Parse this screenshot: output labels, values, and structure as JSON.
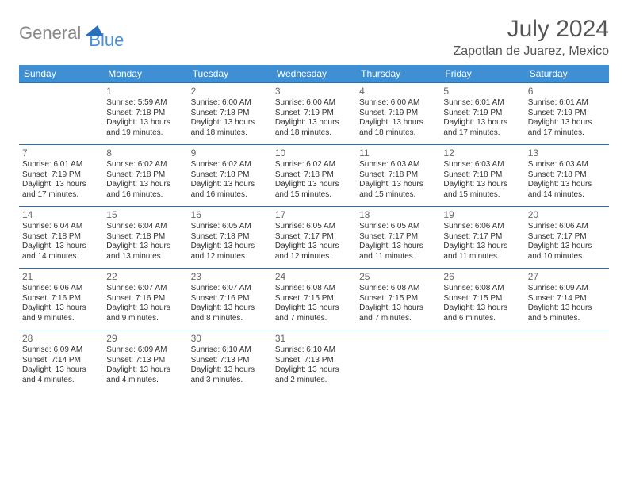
{
  "logo": {
    "part1": "General",
    "part2": "Blue"
  },
  "title": "July 2024",
  "location": "Zapotlan de Juarez, Mexico",
  "colors": {
    "header_bg": "#3f8fd4",
    "header_text": "#ffffff",
    "border": "#2b6fb8",
    "body_text": "#333333",
    "title_text": "#555555",
    "logo_gray": "#888888",
    "logo_blue": "#4a90d9"
  },
  "day_headers": [
    "Sunday",
    "Monday",
    "Tuesday",
    "Wednesday",
    "Thursday",
    "Friday",
    "Saturday"
  ],
  "weeks": [
    [
      null,
      {
        "n": "1",
        "sr": "5:59 AM",
        "ss": "7:18 PM",
        "dl": "13 hours and 19 minutes."
      },
      {
        "n": "2",
        "sr": "6:00 AM",
        "ss": "7:18 PM",
        "dl": "13 hours and 18 minutes."
      },
      {
        "n": "3",
        "sr": "6:00 AM",
        "ss": "7:19 PM",
        "dl": "13 hours and 18 minutes."
      },
      {
        "n": "4",
        "sr": "6:00 AM",
        "ss": "7:19 PM",
        "dl": "13 hours and 18 minutes."
      },
      {
        "n": "5",
        "sr": "6:01 AM",
        "ss": "7:19 PM",
        "dl": "13 hours and 17 minutes."
      },
      {
        "n": "6",
        "sr": "6:01 AM",
        "ss": "7:19 PM",
        "dl": "13 hours and 17 minutes."
      }
    ],
    [
      {
        "n": "7",
        "sr": "6:01 AM",
        "ss": "7:19 PM",
        "dl": "13 hours and 17 minutes."
      },
      {
        "n": "8",
        "sr": "6:02 AM",
        "ss": "7:18 PM",
        "dl": "13 hours and 16 minutes."
      },
      {
        "n": "9",
        "sr": "6:02 AM",
        "ss": "7:18 PM",
        "dl": "13 hours and 16 minutes."
      },
      {
        "n": "10",
        "sr": "6:02 AM",
        "ss": "7:18 PM",
        "dl": "13 hours and 15 minutes."
      },
      {
        "n": "11",
        "sr": "6:03 AM",
        "ss": "7:18 PM",
        "dl": "13 hours and 15 minutes."
      },
      {
        "n": "12",
        "sr": "6:03 AM",
        "ss": "7:18 PM",
        "dl": "13 hours and 15 minutes."
      },
      {
        "n": "13",
        "sr": "6:03 AM",
        "ss": "7:18 PM",
        "dl": "13 hours and 14 minutes."
      }
    ],
    [
      {
        "n": "14",
        "sr": "6:04 AM",
        "ss": "7:18 PM",
        "dl": "13 hours and 14 minutes."
      },
      {
        "n": "15",
        "sr": "6:04 AM",
        "ss": "7:18 PM",
        "dl": "13 hours and 13 minutes."
      },
      {
        "n": "16",
        "sr": "6:05 AM",
        "ss": "7:18 PM",
        "dl": "13 hours and 12 minutes."
      },
      {
        "n": "17",
        "sr": "6:05 AM",
        "ss": "7:17 PM",
        "dl": "13 hours and 12 minutes."
      },
      {
        "n": "18",
        "sr": "6:05 AM",
        "ss": "7:17 PM",
        "dl": "13 hours and 11 minutes."
      },
      {
        "n": "19",
        "sr": "6:06 AM",
        "ss": "7:17 PM",
        "dl": "13 hours and 11 minutes."
      },
      {
        "n": "20",
        "sr": "6:06 AM",
        "ss": "7:17 PM",
        "dl": "13 hours and 10 minutes."
      }
    ],
    [
      {
        "n": "21",
        "sr": "6:06 AM",
        "ss": "7:16 PM",
        "dl": "13 hours and 9 minutes."
      },
      {
        "n": "22",
        "sr": "6:07 AM",
        "ss": "7:16 PM",
        "dl": "13 hours and 9 minutes."
      },
      {
        "n": "23",
        "sr": "6:07 AM",
        "ss": "7:16 PM",
        "dl": "13 hours and 8 minutes."
      },
      {
        "n": "24",
        "sr": "6:08 AM",
        "ss": "7:15 PM",
        "dl": "13 hours and 7 minutes."
      },
      {
        "n": "25",
        "sr": "6:08 AM",
        "ss": "7:15 PM",
        "dl": "13 hours and 7 minutes."
      },
      {
        "n": "26",
        "sr": "6:08 AM",
        "ss": "7:15 PM",
        "dl": "13 hours and 6 minutes."
      },
      {
        "n": "27",
        "sr": "6:09 AM",
        "ss": "7:14 PM",
        "dl": "13 hours and 5 minutes."
      }
    ],
    [
      {
        "n": "28",
        "sr": "6:09 AM",
        "ss": "7:14 PM",
        "dl": "13 hours and 4 minutes."
      },
      {
        "n": "29",
        "sr": "6:09 AM",
        "ss": "7:13 PM",
        "dl": "13 hours and 4 minutes."
      },
      {
        "n": "30",
        "sr": "6:10 AM",
        "ss": "7:13 PM",
        "dl": "13 hours and 3 minutes."
      },
      {
        "n": "31",
        "sr": "6:10 AM",
        "ss": "7:13 PM",
        "dl": "13 hours and 2 minutes."
      },
      null,
      null,
      null
    ]
  ],
  "labels": {
    "sunrise": "Sunrise:",
    "sunset": "Sunset:",
    "daylight": "Daylight:"
  }
}
